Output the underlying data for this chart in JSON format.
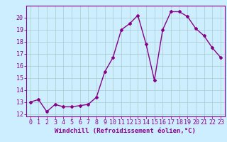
{
  "x": [
    0,
    1,
    2,
    3,
    4,
    5,
    6,
    7,
    8,
    9,
    10,
    11,
    12,
    13,
    14,
    15,
    16,
    17,
    18,
    19,
    20,
    21,
    22,
    23
  ],
  "y": [
    13.0,
    13.2,
    12.2,
    12.8,
    12.6,
    12.6,
    12.7,
    12.8,
    13.4,
    15.5,
    16.7,
    19.0,
    19.5,
    20.2,
    17.8,
    14.8,
    19.0,
    20.5,
    20.5,
    20.1,
    19.1,
    18.5,
    17.5,
    16.7
  ],
  "line_color": "#990099",
  "marker": "D",
  "marker_size": 2.0,
  "linewidth": 1.0,
  "xlabel": "Windchill (Refroidissement éolien,°C)",
  "xlabel_fontsize": 6.5,
  "xlim": [
    -0.5,
    23.5
  ],
  "ylim": [
    11.8,
    21.0
  ],
  "yticks": [
    12,
    13,
    14,
    15,
    16,
    17,
    18,
    19,
    20
  ],
  "xticks": [
    0,
    1,
    2,
    3,
    4,
    5,
    6,
    7,
    8,
    9,
    10,
    11,
    12,
    13,
    14,
    15,
    16,
    17,
    18,
    19,
    20,
    21,
    22,
    23
  ],
  "tick_fontsize": 6.0,
  "bg_color": "#cceeff",
  "grid_color": "#aacccc",
  "line_col": "#880088",
  "spine_color": "#880088",
  "xlabel_color": "#880088"
}
